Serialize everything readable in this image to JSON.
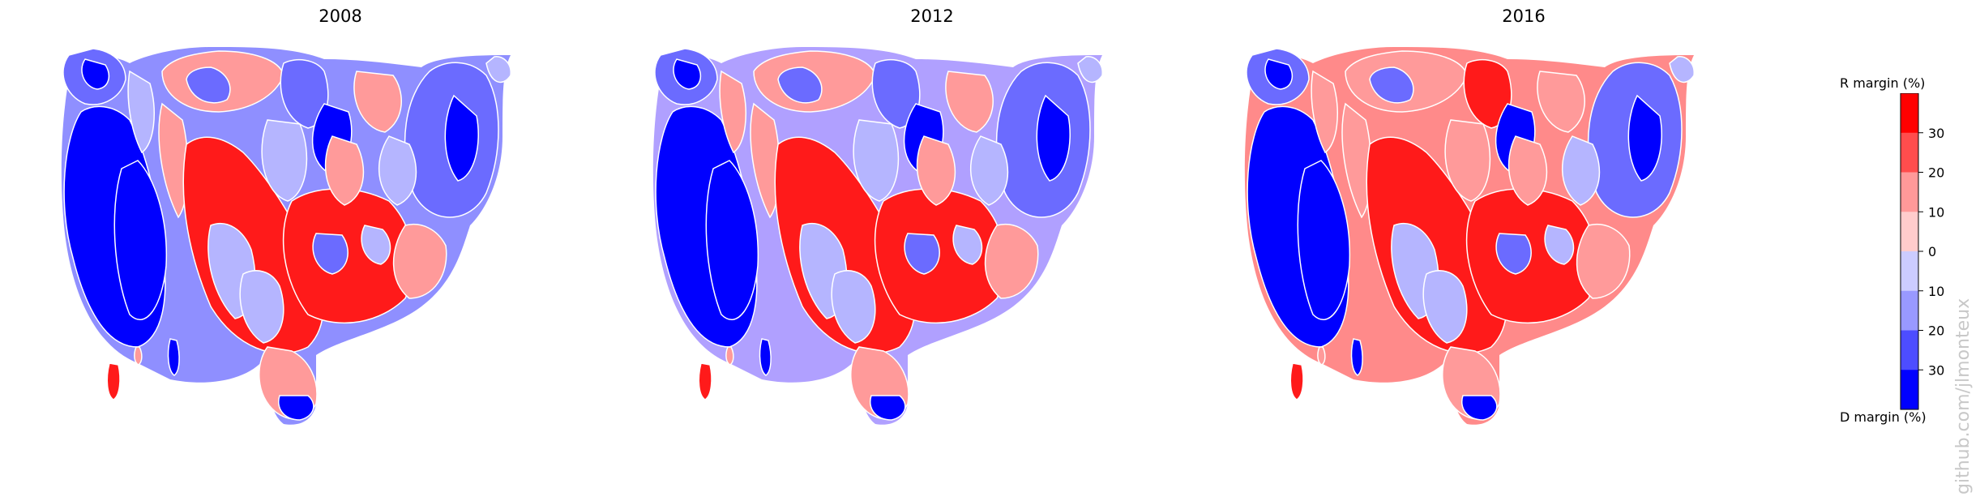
{
  "panels": [
    {
      "title": "2008"
    },
    {
      "title": "2012"
    },
    {
      "title": "2016"
    }
  ],
  "colorbar": {
    "top_label": "R margin (%)",
    "bottom_label": "D margin (%)",
    "ticks": [
      "30",
      "20",
      "10",
      "0",
      "10",
      "20",
      "30"
    ],
    "colors": [
      "#ff0000",
      "#ff4d4d",
      "#ff9999",
      "#ffcccc",
      "#ccccff",
      "#9999ff",
      "#4d4dff",
      "#0000ff"
    ]
  },
  "watermark": "github.com/jlmonteux",
  "colors": {
    "red": "#ff1a1a",
    "light_red": "#ff9a9a",
    "blue": "#0000ff",
    "light_blue": "#b5b5ff",
    "mid_blue": "#6b6bff"
  }
}
